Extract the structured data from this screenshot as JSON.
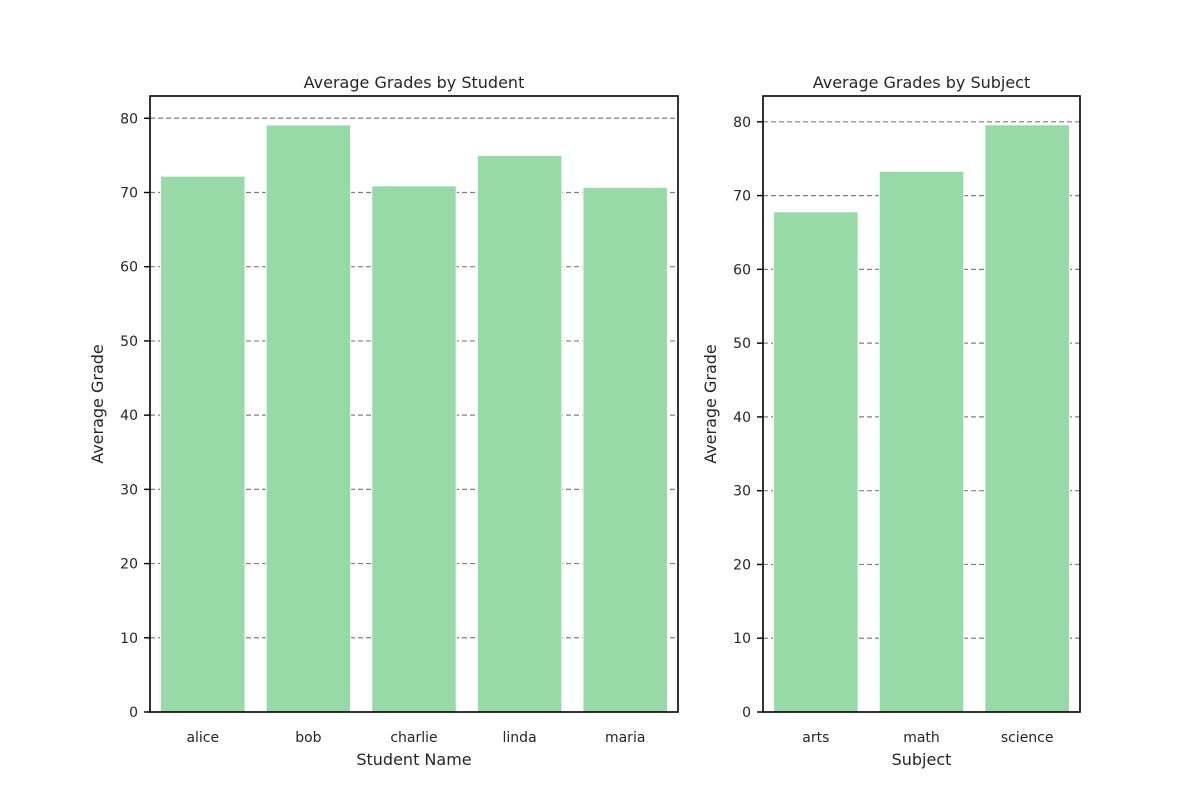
{
  "chart_data": [
    {
      "type": "bar",
      "title": "Average Grades by Student",
      "xlabel": "Student Name",
      "ylabel": "Average Grade",
      "categories": [
        "alice",
        "bob",
        "charlie",
        "linda",
        "maria"
      ],
      "values": [
        72.2,
        79.1,
        70.9,
        75.0,
        70.7
      ],
      "ylim": [
        0,
        83
      ],
      "yticks": [
        0,
        10,
        20,
        30,
        40,
        50,
        60,
        70,
        80
      ],
      "grid": "y, dashed",
      "color": "#98D9A8"
    },
    {
      "type": "bar",
      "title": "Average Grades by Subject",
      "xlabel": "Subject",
      "ylabel": "Average Grade",
      "categories": [
        "arts",
        "math",
        "science"
      ],
      "values": [
        67.8,
        73.3,
        79.6
      ],
      "ylim": [
        0,
        83.5
      ],
      "yticks": [
        0,
        10,
        20,
        30,
        40,
        50,
        60,
        70,
        80
      ],
      "grid": "y, dashed",
      "color": "#98D9A8"
    }
  ]
}
